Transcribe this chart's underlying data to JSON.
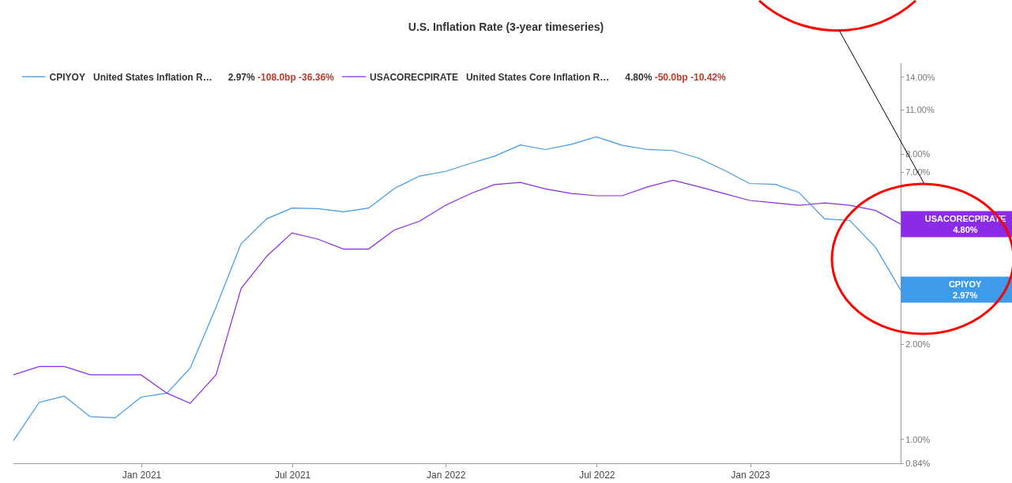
{
  "chart_data": {
    "type": "line",
    "title": "U.S. Inflation Rate (3-year timeseries)",
    "x": [
      "2020-07-31",
      "2020-08-31",
      "2020-09-30",
      "2020-10-31",
      "2020-11-30",
      "2020-12-31",
      "2021-01-31",
      "2021-02-28",
      "2021-03-31",
      "2021-04-30",
      "2021-05-31",
      "2021-06-30",
      "2021-07-31",
      "2021-08-31",
      "2021-09-30",
      "2021-10-31",
      "2021-11-30",
      "2021-12-31",
      "2022-01-31",
      "2022-02-28",
      "2022-03-31",
      "2022-04-30",
      "2022-05-31",
      "2022-06-30",
      "2022-07-31",
      "2022-08-31",
      "2022-09-30",
      "2022-10-31",
      "2022-11-30",
      "2022-12-31",
      "2023-01-31",
      "2023-02-28",
      "2023-03-31",
      "2023-04-30",
      "2023-05-31",
      "2023-06-30"
    ],
    "series": [
      {
        "name": "CPIYOY",
        "color": "#3d9be9",
        "values": [
          0.99,
          1.31,
          1.37,
          1.18,
          1.17,
          1.36,
          1.4,
          1.68,
          2.62,
          4.16,
          4.99,
          5.39,
          5.37,
          5.25,
          5.39,
          6.22,
          6.81,
          7.04,
          7.48,
          7.87,
          8.54,
          8.26,
          8.58,
          9.06,
          8.52,
          8.26,
          8.2,
          7.75,
          7.11,
          6.45,
          6.41,
          6.04,
          4.98,
          4.93,
          4.05,
          2.97
        ]
      },
      {
        "name": "USACORECPIRATE",
        "color": "#8b2be8",
        "values": [
          1.6,
          1.7,
          1.7,
          1.6,
          1.6,
          1.6,
          1.4,
          1.3,
          1.6,
          3.0,
          3.8,
          4.5,
          4.3,
          4.0,
          4.0,
          4.6,
          4.9,
          5.5,
          6.0,
          6.4,
          6.5,
          6.2,
          6.0,
          5.9,
          5.9,
          6.3,
          6.6,
          6.3,
          6.0,
          5.7,
          5.6,
          5.5,
          5.6,
          5.5,
          5.3,
          4.8
        ]
      }
    ],
    "annotations": [
      "United States Inflation R…",
      "2.97% -108.0bp -36.36%",
      "United States Core Inflation R…",
      "4.80% -50.0bp -10.42%",
      "2.97%",
      "4.80%"
    ],
    "log": true,
    "xlim": [
      "2020-07-31",
      "2023-06-30"
    ],
    "xticks": [
      {
        "value": "2021-01-01",
        "label": "Jan 2021"
      },
      {
        "value": "2021-07-01",
        "label": "Jul 2021"
      },
      {
        "value": "2022-01-01",
        "label": "Jan 2022"
      },
      {
        "value": "2022-07-01",
        "label": "Jul 2022"
      },
      {
        "value": "2023-01-01",
        "label": "Jan 2023"
      }
    ],
    "ylim": [
      0.84,
      15.5
    ],
    "yticks": [
      {
        "value": 0.84,
        "label": "0.84%"
      },
      {
        "value": 1,
        "label": "1.00%"
      },
      {
        "value": 2,
        "label": "2.00%"
      },
      {
        "value": 7,
        "label": "7.00%"
      },
      {
        "value": 8,
        "label": "8.00%"
      },
      {
        "value": 11,
        "label": "11.00%"
      },
      {
        "value": 14,
        "label": "14.00%"
      }
    ],
    "grid": false,
    "legend": "top left",
    "marker": "none",
    "line_style": "solid"
  }
}
